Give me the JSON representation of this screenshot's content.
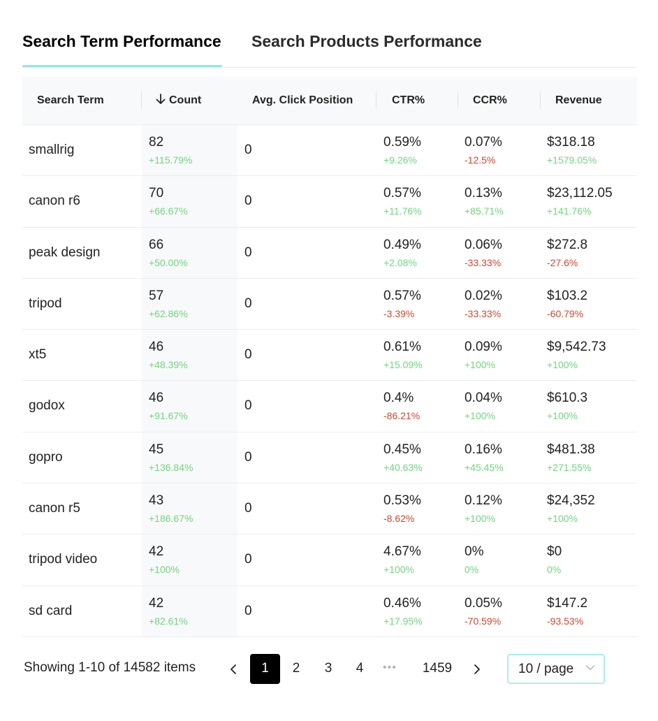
{
  "tabs": [
    {
      "label": "Search Term Performance",
      "active": true
    },
    {
      "label": "Search Products Performance",
      "active": false
    }
  ],
  "columns": {
    "search_term": "Search Term",
    "count": "Count",
    "avg_click_position": "Avg. Click Position",
    "ctr": "CTR%",
    "ccr": "CCR%",
    "revenue": "Revenue"
  },
  "sort": {
    "column": "count",
    "direction": "desc",
    "icon": "arrow-down-icon"
  },
  "rows": [
    {
      "term": "smallrig",
      "count": "82",
      "count_change": "+115.79%",
      "avg": "0",
      "ctr": "0.59%",
      "ctr_change": "+9.26%",
      "ccr": "0.07%",
      "ccr_change": "-12.5%",
      "revenue": "$318.18",
      "revenue_change": "+1579.05%"
    },
    {
      "term": "canon r6",
      "count": "70",
      "count_change": "+66.67%",
      "avg": "0",
      "ctr": "0.57%",
      "ctr_change": "+11.76%",
      "ccr": "0.13%",
      "ccr_change": "+85.71%",
      "revenue": "$23,112.05",
      "revenue_change": "+141.76%"
    },
    {
      "term": "peak design",
      "count": "66",
      "count_change": "+50.00%",
      "avg": "0",
      "ctr": "0.49%",
      "ctr_change": "+2.08%",
      "ccr": "0.06%",
      "ccr_change": "-33.33%",
      "revenue": "$272.8",
      "revenue_change": "-27.6%"
    },
    {
      "term": "tripod",
      "count": "57",
      "count_change": "+62.86%",
      "avg": "0",
      "ctr": "0.57%",
      "ctr_change": "-3.39%",
      "ccr": "0.02%",
      "ccr_change": "-33.33%",
      "revenue": "$103.2",
      "revenue_change": "-60.79%"
    },
    {
      "term": "xt5",
      "count": "46",
      "count_change": "+48.39%",
      "avg": "0",
      "ctr": "0.61%",
      "ctr_change": "+15.09%",
      "ccr": "0.09%",
      "ccr_change": "+100%",
      "revenue": "$9,542.73",
      "revenue_change": "+100%"
    },
    {
      "term": "godox",
      "count": "46",
      "count_change": "+91.67%",
      "avg": "0",
      "ctr": "0.4%",
      "ctr_change": "-86.21%",
      "ccr": "0.04%",
      "ccr_change": "+100%",
      "revenue": "$610.3",
      "revenue_change": "+100%"
    },
    {
      "term": "gopro",
      "count": "45",
      "count_change": "+136.84%",
      "avg": "0",
      "ctr": "0.45%",
      "ctr_change": "+40.63%",
      "ccr": "0.16%",
      "ccr_change": "+45.45%",
      "revenue": "$481.38",
      "revenue_change": "+271.55%"
    },
    {
      "term": "canon r5",
      "count": "43",
      "count_change": "+186.67%",
      "avg": "0",
      "ctr": "0.53%",
      "ctr_change": "-8.62%",
      "ccr": "0.12%",
      "ccr_change": "+100%",
      "revenue": "$24,352",
      "revenue_change": "+100%"
    },
    {
      "term": "tripod video",
      "count": "42",
      "count_change": "+100%",
      "avg": "0",
      "ctr": "4.67%",
      "ctr_change": "+100%",
      "ccr": "0%",
      "ccr_change": "0%",
      "revenue": "$0",
      "revenue_change": "0%"
    },
    {
      "term": "sd card",
      "count": "42",
      "count_change": "+82.61%",
      "avg": "0",
      "ctr": "0.46%",
      "ctr_change": "+17.95%",
      "ccr": "0.05%",
      "ccr_change": "-70.59%",
      "revenue": "$147.2",
      "revenue_change": "-93.53%"
    }
  ],
  "colors": {
    "positive": "#6fd67c",
    "negative": "#d6442d",
    "accent": "#8ee8e4",
    "header_bg": "#f8f9fa"
  },
  "pagination": {
    "summary": "Showing 1-10 of 14582 items",
    "prev_icon": "chevron-left-icon",
    "next_icon": "chevron-right-icon",
    "pages": [
      "1",
      "2",
      "3",
      "4"
    ],
    "current_page": "1",
    "ellipsis": "•••",
    "last_page": "1459",
    "page_size": "10 / page",
    "page_size_icon": "chevron-down-icon"
  }
}
